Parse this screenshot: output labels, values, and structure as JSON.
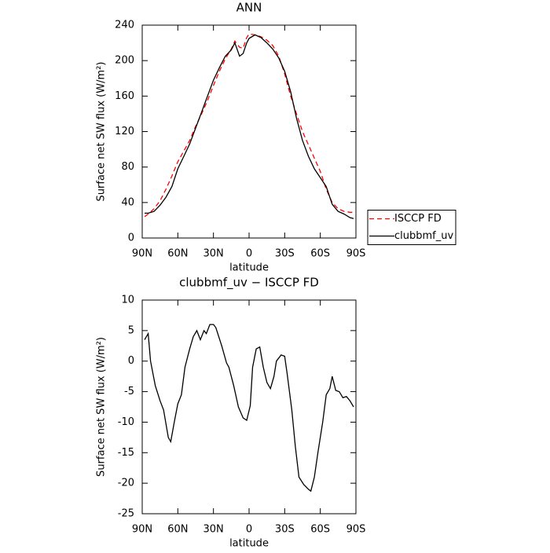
{
  "chart_data": [
    {
      "type": "line",
      "title": "ANN",
      "xlabel": "latitude",
      "ylabel": "Surface net SW flux (W/m²)",
      "x": [
        88,
        85,
        80,
        75,
        70,
        65,
        60,
        55,
        50,
        45,
        40,
        35,
        30,
        25,
        20,
        15,
        12,
        8,
        5,
        2,
        0,
        -5,
        -10,
        -15,
        -20,
        -25,
        -30,
        -35,
        -40,
        -45,
        -50,
        -55,
        -60,
        -65,
        -70,
        -75,
        -80,
        -85,
        -88
      ],
      "series": [
        {
          "name": "ISCCP FD",
          "color": "#ff0000",
          "dash": true,
          "values": [
            24,
            27,
            33,
            42,
            55,
            70,
            86,
            98,
            110,
            126,
            140,
            155,
            172,
            188,
            202,
            213,
            222,
            215,
            214,
            226,
            230,
            229,
            227,
            223,
            217,
            205,
            185,
            160,
            140,
            120,
            105,
            90,
            75,
            55,
            40,
            33,
            30,
            29,
            29
          ]
        },
        {
          "name": "clubbmf_uv",
          "color": "#000000",
          "dash": false,
          "values": [
            28,
            28,
            30,
            37,
            46,
            58,
            78,
            92,
            106,
            124,
            142,
            160,
            178,
            192,
            205,
            212,
            220,
            205,
            208,
            220,
            225,
            229,
            226,
            220,
            213,
            203,
            188,
            165,
            135,
            110,
            92,
            78,
            68,
            58,
            38,
            30,
            27,
            23,
            22
          ]
        }
      ],
      "xlim": [
        90,
        -90
      ],
      "xticks": [
        {
          "value": 90,
          "label": "90N"
        },
        {
          "value": 60,
          "label": "60N"
        },
        {
          "value": 30,
          "label": "30N"
        },
        0,
        {
          "value": -30,
          "label": "30S"
        },
        {
          "value": -60,
          "label": "60S"
        },
        {
          "value": -90,
          "label": "90S"
        }
      ],
      "ylim": [
        0,
        240
      ],
      "yticks": [
        0,
        40,
        80,
        120,
        160,
        200,
        240
      ],
      "legend": "right"
    },
    {
      "type": "line",
      "title": "clubbmf_uv − ISCCP FD",
      "xlabel": "latitude",
      "ylabel": "Surface net SW flux (W/m²)",
      "x": [
        88,
        85,
        83,
        79,
        75,
        72,
        68,
        66,
        63,
        60,
        57,
        54,
        50,
        47,
        44,
        41,
        38,
        36,
        33,
        30,
        28,
        23,
        19,
        17,
        13,
        9,
        5,
        2,
        -1,
        -3,
        -6,
        -9,
        -12,
        -15,
        -18,
        -21,
        -23,
        -27,
        -30,
        -32,
        -36,
        -39,
        -42,
        -46,
        -50,
        -52,
        -55,
        -58,
        -62,
        -65,
        -68,
        -70,
        -73,
        -76,
        -79,
        -82,
        -85,
        -88
      ],
      "series": [
        {
          "name": "clubbmf_uv − ISCCP FD",
          "color": "#000000",
          "dash": false,
          "values": [
            3.5,
            4.5,
            0,
            -4,
            -6.5,
            -8,
            -12.5,
            -13.2,
            -10,
            -7,
            -5.5,
            -1,
            2,
            4,
            5,
            3.5,
            5,
            4.5,
            6,
            6,
            5.5,
            2.5,
            -0.3,
            -1,
            -4,
            -7.5,
            -9.3,
            -9.7,
            -7.3,
            -1,
            2,
            2.3,
            -1,
            -3.5,
            -4.5,
            -2.5,
            0,
            1,
            0.8,
            -2,
            -8,
            -14,
            -19,
            -20.2,
            -21,
            -21.3,
            -19,
            -15,
            -10,
            -5.5,
            -4.5,
            -2.5,
            -4.8,
            -5,
            -6,
            -5.8,
            -6.5,
            -7.5
          ]
        }
      ],
      "xlim": [
        90,
        -90
      ],
      "xticks": [
        {
          "value": 90,
          "label": "90N"
        },
        {
          "value": 60,
          "label": "60N"
        },
        {
          "value": 30,
          "label": "30N"
        },
        0,
        {
          "value": -30,
          "label": "30S"
        },
        {
          "value": -60,
          "label": "60S"
        },
        {
          "value": -90,
          "label": "90S"
        }
      ],
      "ylim": [
        -25,
        10
      ],
      "yticks": [
        -25,
        -20,
        -15,
        -10,
        -5,
        0,
        5,
        10
      ]
    }
  ]
}
